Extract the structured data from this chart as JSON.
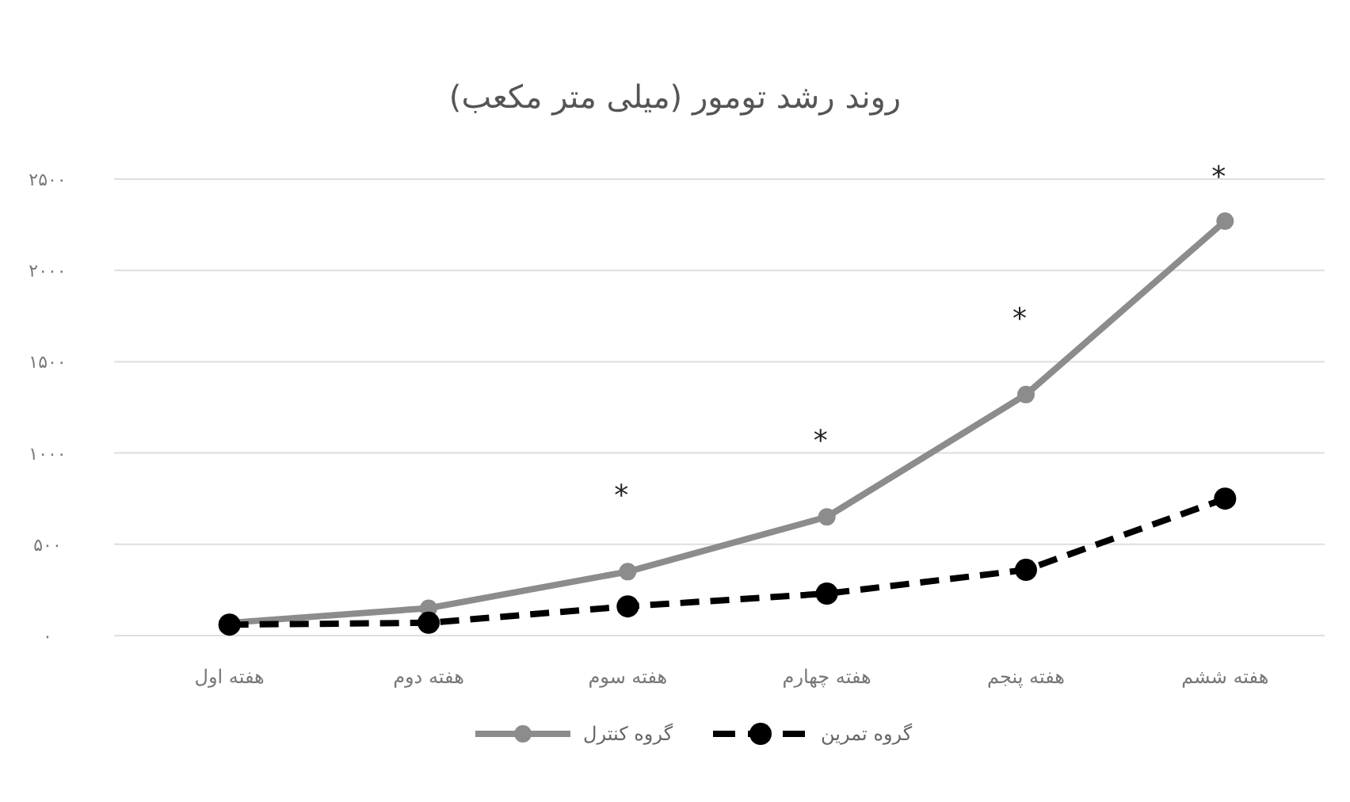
{
  "chart_data": {
    "type": "line",
    "title": "روند رشد تومور (میلی متر مکعب)",
    "categories": [
      "هفته اول",
      "هفته دوم",
      "هفته سوم",
      "هفته چهارم",
      "هفته پنجم",
      "هفته ششم"
    ],
    "series": [
      {
        "name": "گروه کنترل",
        "color": "#8c8c8c",
        "line_style": "solid",
        "values": [
          70,
          150,
          350,
          650,
          1320,
          2270
        ]
      },
      {
        "name": "گروه تمرین",
        "color": "#000000",
        "line_style": "dashed",
        "values": [
          60,
          70,
          160,
          230,
          360,
          750
        ]
      }
    ],
    "ylim": [
      0,
      2500
    ],
    "yticks": [
      {
        "value": 0,
        "label": "۰"
      },
      {
        "value": 500,
        "label": "۵۰۰"
      },
      {
        "value": 1000,
        "label": "۱۰۰۰"
      },
      {
        "value": 1500,
        "label": "۱۵۰۰"
      },
      {
        "value": 2000,
        "label": "۲۰۰۰"
      },
      {
        "value": 2500,
        "label": "۲۵۰۰"
      }
    ],
    "grid": "y",
    "legend": "bottom",
    "marker": "circle",
    "annotations": [
      "*",
      "*",
      "*",
      "*"
    ]
  }
}
